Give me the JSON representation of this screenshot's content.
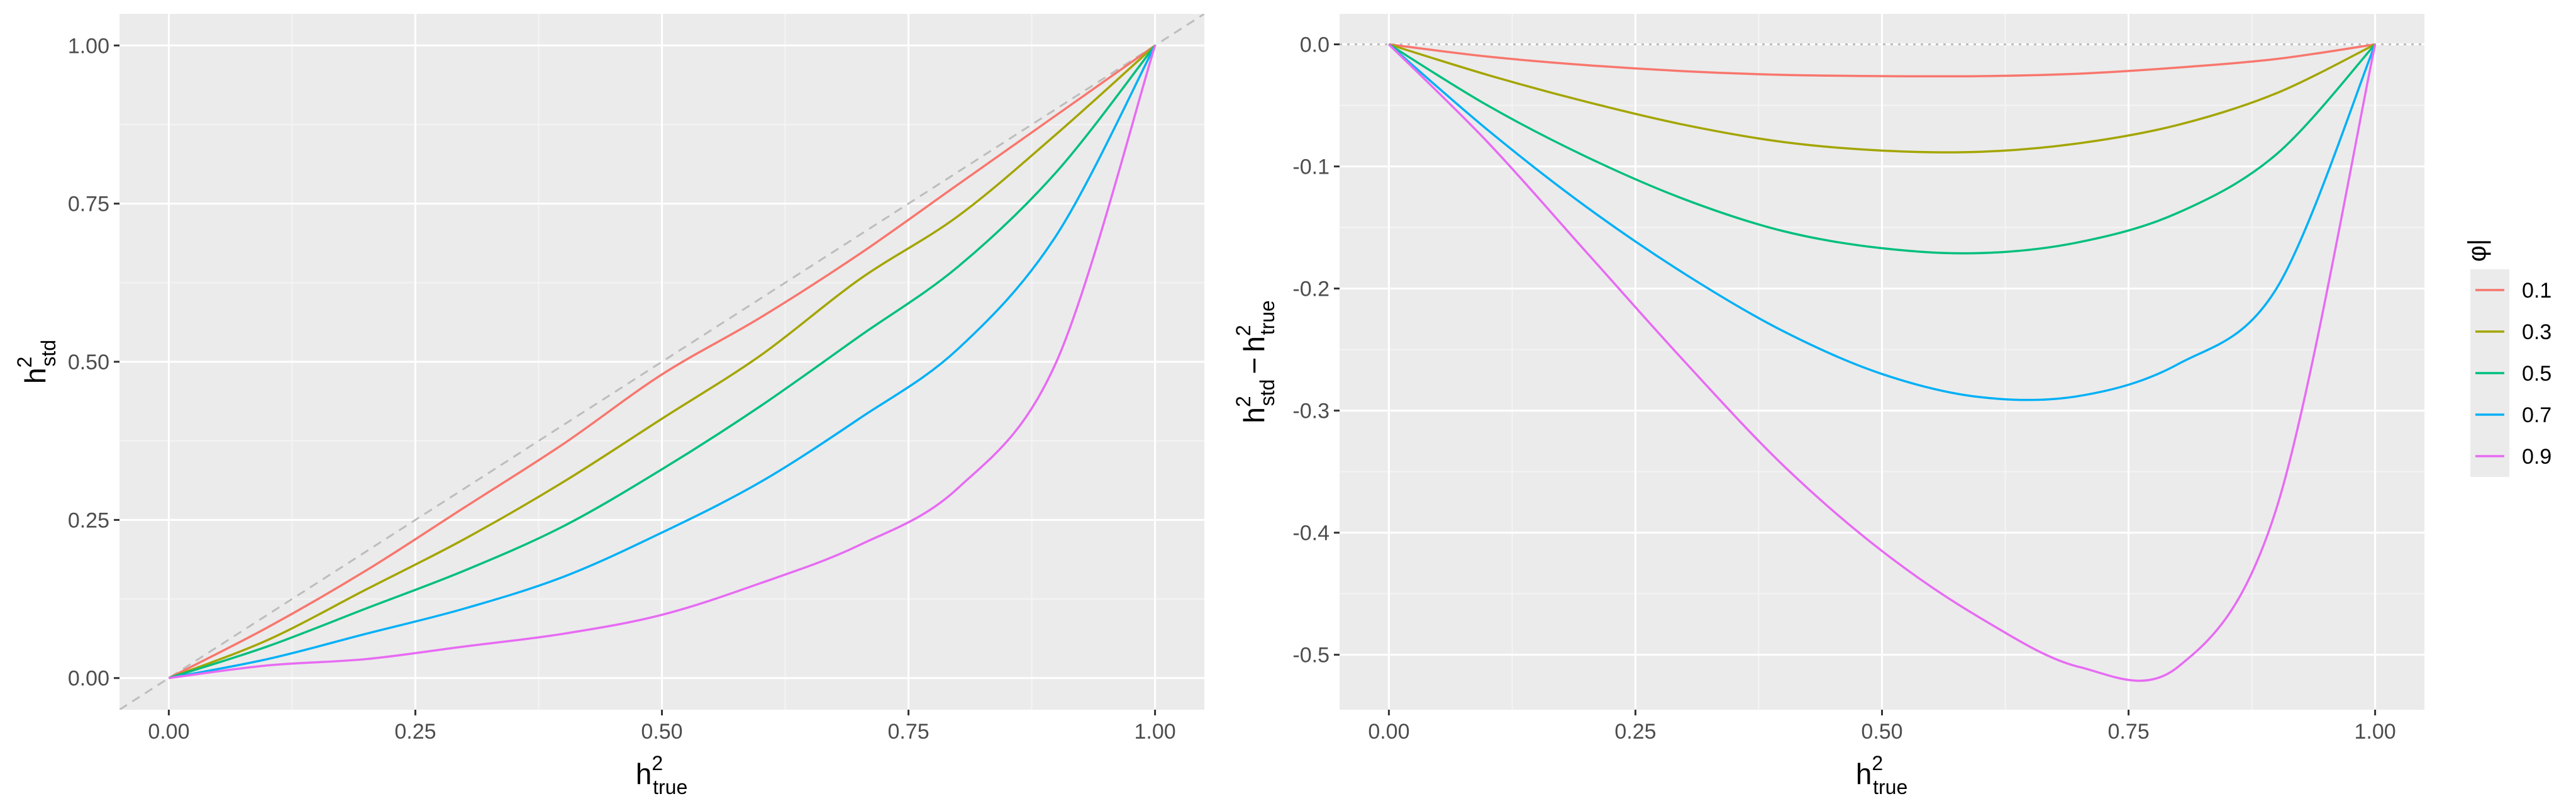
{
  "chart_data": [
    {
      "type": "line",
      "panel": "left",
      "xlabel": {
        "main": "h",
        "sup": "2",
        "sub": "true"
      },
      "ylabel": {
        "main": "h",
        "sup": "2",
        "sub": "std"
      },
      "xlim": [
        -0.05,
        1.05
      ],
      "ylim": [
        -0.05,
        1.05
      ],
      "x_ticks": [
        0,
        0.25,
        0.5,
        0.75,
        1
      ],
      "x_tick_labels": [
        "0.00",
        "0.25",
        "0.50",
        "0.75",
        "1.00"
      ],
      "y_ticks": [
        0,
        0.25,
        0.5,
        0.75,
        1
      ],
      "y_tick_labels": [
        "0.00",
        "0.25",
        "0.50",
        "0.75",
        "1.00"
      ],
      "reference_line": {
        "style": "dashed",
        "slope": 1,
        "intercept": 0,
        "color": "#bdbdbd"
      },
      "x": [
        0,
        0.1,
        0.2,
        0.3,
        0.4,
        0.5,
        0.6,
        0.7,
        0.8,
        0.9,
        1
      ],
      "series": [
        {
          "name": "0.1",
          "color": "#F8766D",
          "values": [
            0,
            0.08,
            0.17,
            0.27,
            0.37,
            0.48,
            0.57,
            0.67,
            0.78,
            0.89,
            1
          ]
        },
        {
          "name": "0.3",
          "color": "#A3A500",
          "values": [
            0,
            0.06,
            0.14,
            0.22,
            0.31,
            0.41,
            0.51,
            0.63,
            0.73,
            0.86,
            1
          ]
        },
        {
          "name": "0.5",
          "color": "#00BF7D",
          "values": [
            0,
            0.05,
            0.11,
            0.17,
            0.24,
            0.33,
            0.43,
            0.54,
            0.65,
            0.8,
            1
          ]
        },
        {
          "name": "0.7",
          "color": "#00B0F6",
          "values": [
            0,
            0.03,
            0.07,
            0.11,
            0.16,
            0.23,
            0.31,
            0.41,
            0.52,
            0.7,
            1
          ]
        },
        {
          "name": "0.9",
          "color": "#E76BF3",
          "values": [
            0,
            0.02,
            0.03,
            0.05,
            0.07,
            0.1,
            0.15,
            0.21,
            0.3,
            0.5,
            1
          ]
        }
      ]
    },
    {
      "type": "line",
      "panel": "right",
      "xlabel": {
        "main": "h",
        "sup": "2",
        "sub": "true"
      },
      "ylabel": {
        "parts": [
          {
            "main": "h",
            "sup": "2",
            "sub": "std"
          },
          {
            "main": "h",
            "sup": "2",
            "sub": "true"
          }
        ],
        "operator": "−"
      },
      "xlim": [
        -0.05,
        1.05
      ],
      "ylim": [
        -0.545,
        0.025
      ],
      "x_ticks": [
        0,
        0.25,
        0.5,
        0.75,
        1
      ],
      "x_tick_labels": [
        "0.00",
        "0.25",
        "0.50",
        "0.75",
        "1.00"
      ],
      "y_ticks": [
        0,
        -0.1,
        -0.2,
        -0.3,
        -0.4,
        -0.5
      ],
      "y_tick_labels": [
        "0.0",
        "-0.1",
        "-0.2",
        "-0.3",
        "-0.4",
        "-0.5"
      ],
      "reference_line": {
        "style": "dotted",
        "y": 0,
        "color": "#bdbdbd"
      },
      "x": [
        0,
        0.1,
        0.2,
        0.3,
        0.4,
        0.5,
        0.6,
        0.7,
        0.8,
        0.9,
        1
      ],
      "series": [
        {
          "name": "0.1",
          "color": "#F8766D",
          "values": [
            0,
            -0.01,
            -0.017,
            -0.022,
            -0.025,
            -0.026,
            -0.026,
            -0.024,
            -0.019,
            -0.012,
            0
          ]
        },
        {
          "name": "0.3",
          "color": "#A3A500",
          "values": [
            0,
            -0.025,
            -0.047,
            -0.066,
            -0.08,
            -0.087,
            -0.088,
            -0.081,
            -0.066,
            -0.04,
            0
          ]
        },
        {
          "name": "0.5",
          "color": "#00BF7D",
          "values": [
            0,
            -0.05,
            -0.092,
            -0.127,
            -0.153,
            -0.167,
            -0.171,
            -0.162,
            -0.138,
            -0.09,
            0
          ]
        },
        {
          "name": "0.7",
          "color": "#00B0F6",
          "values": [
            0,
            -0.07,
            -0.133,
            -0.188,
            -0.235,
            -0.27,
            -0.289,
            -0.288,
            -0.262,
            -0.2,
            0
          ]
        },
        {
          "name": "0.9",
          "color": "#E76BF3",
          "values": [
            0,
            -0.08,
            -0.17,
            -0.26,
            -0.345,
            -0.415,
            -0.47,
            -0.51,
            -0.51,
            -0.38,
            0
          ]
        }
      ]
    }
  ],
  "legend": {
    "title": "φ|",
    "entries": [
      {
        "label": "0.1",
        "color": "#F8766D"
      },
      {
        "label": "0.3",
        "color": "#A3A500"
      },
      {
        "label": "0.5",
        "color": "#00BF7D"
      },
      {
        "label": "0.7",
        "color": "#00B0F6"
      },
      {
        "label": "0.9",
        "color": "#E76BF3"
      }
    ]
  },
  "theme": {
    "panel_background": "#EBEBEB",
    "grid_major": "#FFFFFF",
    "grid_minor": "#F4F4F4",
    "tick_text": "#4D4D4D"
  }
}
